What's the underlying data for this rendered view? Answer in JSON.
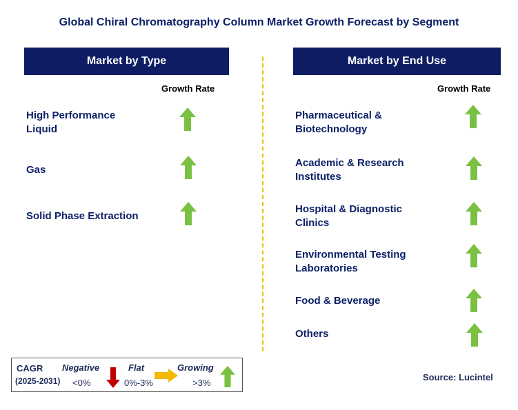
{
  "title": "Global Chiral Chromatography Column Market Growth Forecast by Segment",
  "left_panel": {
    "header": "Market by Type",
    "growth_label": "Growth Rate",
    "items": [
      {
        "label_lines": [
          "High Performance",
          "Liquid"
        ],
        "trend": "up"
      },
      {
        "label_lines": [
          "Gas"
        ],
        "trend": "up"
      },
      {
        "label_lines": [
          "Solid Phase Extraction"
        ],
        "trend": "up"
      }
    ]
  },
  "right_panel": {
    "header": "Market by End Use",
    "growth_label": "Growth Rate",
    "items": [
      {
        "label_lines": [
          "Pharmaceutical &",
          "Biotechnology"
        ],
        "trend": "up"
      },
      {
        "label_lines": [
          "Academic & Research",
          "Institutes"
        ],
        "trend": "up"
      },
      {
        "label_lines": [
          "Hospital & Diagnostic",
          "Clinics"
        ],
        "trend": "up"
      },
      {
        "label_lines": [
          "Environmental Testing",
          "Laboratories"
        ],
        "trend": "up"
      },
      {
        "label_lines": [
          "Food & Beverage"
        ],
        "trend": "up"
      },
      {
        "label_lines": [
          "Others"
        ],
        "trend": "up"
      }
    ]
  },
  "legend": {
    "cagr_label": "CAGR",
    "period": "(2025-2031)",
    "negative": {
      "label": "Negative",
      "range": "<0%",
      "icon": "red-down-arrow"
    },
    "flat": {
      "label": "Flat",
      "range": "0%-3%",
      "icon": "orange-right-arrow"
    },
    "growing": {
      "label": "Growing",
      "range": ">3%",
      "icon": "green-up-arrow"
    }
  },
  "source": "Source: Lucintel",
  "colors": {
    "header_bg": "#0e1d63",
    "title": "#0b1f66",
    "divider": "#f5b800",
    "up_arrow": "#7ac143",
    "down_arrow": "#c00000",
    "flat_arrow": "#f5b800"
  }
}
